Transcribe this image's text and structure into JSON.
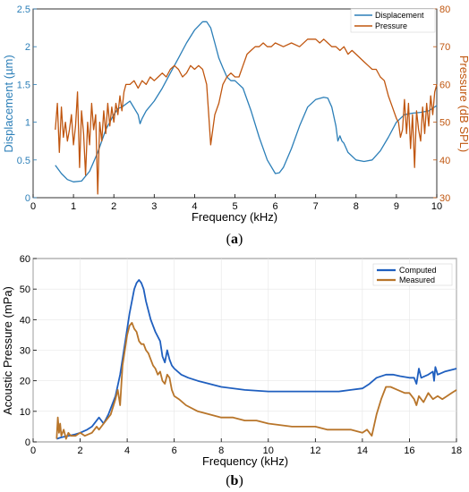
{
  "chart_data": [
    {
      "type": "line",
      "panel_label": "(a)",
      "panel_label_bold": "a",
      "xlabel": "Frequency (kHz)",
      "ylabel_left": "Displacement (µm)",
      "ylabel_right": "Pressure (dB SPL)",
      "xlim": [
        0,
        10
      ],
      "ylim_left": [
        0,
        2.5
      ],
      "ylim_right": [
        30,
        80
      ],
      "x_ticks": [
        "0",
        "1",
        "2",
        "3",
        "4",
        "5",
        "6",
        "7",
        "8",
        "9",
        "10"
      ],
      "y_ticks_left": [
        "0",
        "0.5",
        "1",
        "1.5",
        "2",
        "2.5"
      ],
      "y_ticks_right": [
        "30",
        "40",
        "50",
        "60",
        "70",
        "80"
      ],
      "legend_position": "top-right",
      "colors": {
        "Displacement": "#2c7fb8",
        "Pressure": "#c0560f"
      },
      "series": [
        {
          "name": "Displacement",
          "axis": "left",
          "x": [
            0.55,
            0.7,
            0.85,
            1.0,
            1.2,
            1.4,
            1.6,
            1.8,
            2.0,
            2.1,
            2.2,
            2.4,
            2.6,
            2.65,
            2.7,
            2.8,
            3.0,
            3.2,
            3.4,
            3.6,
            3.8,
            4.0,
            4.2,
            4.3,
            4.4,
            4.5,
            4.6,
            4.7,
            4.8,
            4.9,
            5.0,
            5.2,
            5.4,
            5.6,
            5.8,
            6.0,
            6.1,
            6.2,
            6.4,
            6.6,
            6.8,
            7.0,
            7.2,
            7.3,
            7.4,
            7.5,
            7.55,
            7.6,
            7.65,
            7.7,
            7.8,
            8.0,
            8.2,
            8.4,
            8.6,
            8.8,
            9.0,
            9.2,
            9.4,
            9.6,
            9.8,
            10.0
          ],
          "y": [
            0.43,
            0.32,
            0.24,
            0.21,
            0.22,
            0.35,
            0.6,
            0.9,
            1.1,
            1.18,
            1.2,
            1.28,
            1.1,
            0.98,
            1.05,
            1.15,
            1.28,
            1.45,
            1.65,
            1.85,
            2.05,
            2.22,
            2.33,
            2.33,
            2.25,
            2.05,
            1.85,
            1.72,
            1.6,
            1.55,
            1.55,
            1.45,
            1.15,
            0.8,
            0.5,
            0.32,
            0.33,
            0.4,
            0.65,
            0.95,
            1.2,
            1.3,
            1.33,
            1.32,
            1.2,
            0.95,
            0.75,
            0.82,
            0.75,
            0.72,
            0.6,
            0.5,
            0.48,
            0.5,
            0.62,
            0.8,
            1.0,
            1.1,
            1.12,
            1.13,
            1.15,
            1.22
          ]
        },
        {
          "name": "Pressure",
          "axis": "right",
          "x": [
            0.55,
            0.6,
            0.65,
            0.7,
            0.75,
            0.8,
            0.85,
            0.9,
            0.95,
            1.0,
            1.05,
            1.1,
            1.15,
            1.2,
            1.25,
            1.3,
            1.35,
            1.4,
            1.45,
            1.5,
            1.55,
            1.6,
            1.65,
            1.7,
            1.75,
            1.8,
            1.85,
            1.9,
            1.95,
            2.0,
            2.05,
            2.1,
            2.15,
            2.2,
            2.25,
            2.3,
            2.4,
            2.5,
            2.6,
            2.7,
            2.8,
            2.9,
            3.0,
            3.1,
            3.2,
            3.3,
            3.4,
            3.5,
            3.6,
            3.7,
            3.8,
            3.9,
            4.0,
            4.1,
            4.2,
            4.3,
            4.35,
            4.4,
            4.45,
            4.5,
            4.6,
            4.7,
            4.8,
            4.9,
            5.0,
            5.1,
            5.2,
            5.3,
            5.4,
            5.5,
            5.6,
            5.7,
            5.8,
            5.9,
            6.0,
            6.2,
            6.4,
            6.6,
            6.8,
            7.0,
            7.1,
            7.2,
            7.3,
            7.4,
            7.5,
            7.6,
            7.7,
            7.8,
            7.9,
            8.0,
            8.1,
            8.2,
            8.3,
            8.4,
            8.5,
            8.6,
            8.7,
            8.8,
            8.9,
            9.0,
            9.05,
            9.1,
            9.15,
            9.2,
            9.25,
            9.3,
            9.35,
            9.4,
            9.45,
            9.5,
            9.55,
            9.6,
            9.65,
            9.7,
            9.75,
            9.8,
            9.85,
            9.9,
            9.95,
            10.0
          ],
          "y": [
            48,
            55,
            42,
            54,
            46,
            50,
            45,
            48,
            52,
            44,
            49,
            58,
            38,
            53,
            47,
            36,
            50,
            44,
            55,
            48,
            52,
            31,
            50,
            45,
            53,
            47,
            55,
            49,
            54,
            50,
            55,
            52,
            57,
            53,
            58,
            60,
            60,
            61,
            59,
            61,
            60,
            62,
            61,
            62,
            63,
            62,
            64,
            65,
            64,
            62,
            63,
            65,
            64,
            65,
            64,
            60,
            52,
            44,
            48,
            52,
            55,
            60,
            62,
            63,
            62,
            62,
            65,
            68,
            69,
            70,
            70,
            71,
            70,
            70,
            71,
            70,
            71,
            70,
            72,
            72,
            71,
            72,
            71,
            70,
            70,
            69,
            70,
            68,
            69,
            68,
            67,
            66,
            65,
            64,
            64,
            62,
            61,
            57,
            54,
            51,
            50,
            46,
            48,
            56,
            47,
            55,
            43,
            52,
            38,
            53,
            48,
            45,
            54,
            47,
            55,
            49,
            57,
            52,
            58,
            60
          ]
        }
      ]
    },
    {
      "type": "line",
      "panel_label": "(b)",
      "panel_label_bold": "b",
      "xlabel": "Frequency (kHz)",
      "ylabel": "Acoustic Pressure (mPa)",
      "xlim": [
        0,
        18
      ],
      "ylim": [
        0,
        60
      ],
      "x_ticks": [
        "0",
        "2",
        "4",
        "6",
        "8",
        "10",
        "12",
        "14",
        "16",
        "18"
      ],
      "y_ticks": [
        "0",
        "10",
        "20",
        "30",
        "40",
        "50",
        "60"
      ],
      "legend_position": "top-right",
      "colors": {
        "Computed": "#1f5fbf",
        "Measured": "#b8752a"
      },
      "series": [
        {
          "name": "Computed",
          "x": [
            1.0,
            1.2,
            1.5,
            1.8,
            2.0,
            2.3,
            2.5,
            2.7,
            2.8,
            3.0,
            3.2,
            3.5,
            3.7,
            3.9,
            4.1,
            4.3,
            4.4,
            4.5,
            4.6,
            4.7,
            4.8,
            5.0,
            5.2,
            5.4,
            5.5,
            5.6,
            5.7,
            5.8,
            5.9,
            6.0,
            6.3,
            6.6,
            7.0,
            7.5,
            8.0,
            9.0,
            10.0,
            11.0,
            12.0,
            13.0,
            13.5,
            14.0,
            14.3,
            14.6,
            15.0,
            15.3,
            15.6,
            16.0,
            16.2,
            16.3,
            16.4,
            16.5,
            16.8,
            17.0,
            17.05,
            17.1,
            17.2,
            17.5,
            18.0
          ],
          "y": [
            1,
            1.5,
            2,
            2.5,
            3,
            4,
            5,
            7,
            8,
            6,
            9,
            15,
            22,
            32,
            42,
            50,
            52,
            53,
            52,
            50,
            46,
            40,
            36,
            33,
            28,
            26,
            30,
            27,
            25,
            24,
            22,
            21,
            20,
            19,
            18,
            17,
            16.5,
            16.5,
            16.5,
            16.5,
            17,
            17.5,
            19,
            21,
            22,
            22,
            21.5,
            21,
            21,
            19,
            24,
            21,
            22,
            23,
            20,
            24.5,
            22,
            23,
            24
          ]
        },
        {
          "name": "Measured",
          "x": [
            1.0,
            1.05,
            1.1,
            1.15,
            1.2,
            1.3,
            1.4,
            1.5,
            1.6,
            1.8,
            2.0,
            2.2,
            2.5,
            2.7,
            2.8,
            3.0,
            3.3,
            3.5,
            3.6,
            3.7,
            3.8,
            3.9,
            4.0,
            4.1,
            4.2,
            4.3,
            4.4,
            4.5,
            4.6,
            4.7,
            4.8,
            4.9,
            5.0,
            5.1,
            5.2,
            5.3,
            5.4,
            5.5,
            5.6,
            5.7,
            5.8,
            5.9,
            6.0,
            6.2,
            6.5,
            7.0,
            7.5,
            8.0,
            8.5,
            9.0,
            9.5,
            10.0,
            11.0,
            12.0,
            12.5,
            13.0,
            13.5,
            14.0,
            14.2,
            14.4,
            14.6,
            14.8,
            15.0,
            15.2,
            15.5,
            15.8,
            16.0,
            16.2,
            16.3,
            16.4,
            16.6,
            16.8,
            17.0,
            17.2,
            17.4,
            17.6,
            17.8,
            18.0
          ],
          "y": [
            1,
            8,
            3,
            6,
            2,
            4,
            1,
            3,
            2,
            2,
            3,
            2,
            3,
            5,
            4,
            6,
            9,
            14,
            17,
            12,
            25,
            30,
            35,
            38,
            39,
            37,
            36,
            33,
            32,
            32,
            30,
            29,
            27,
            25,
            24,
            22,
            23,
            20,
            19,
            22,
            21,
            17,
            15,
            14,
            12,
            10,
            9,
            8,
            8,
            7,
            7,
            6,
            5,
            5,
            4,
            4,
            4,
            3,
            4,
            2,
            9,
            14,
            18,
            18,
            17,
            16,
            16,
            14,
            12,
            15,
            13,
            16,
            14,
            15,
            14,
            15,
            16,
            17
          ]
        }
      ]
    }
  ]
}
